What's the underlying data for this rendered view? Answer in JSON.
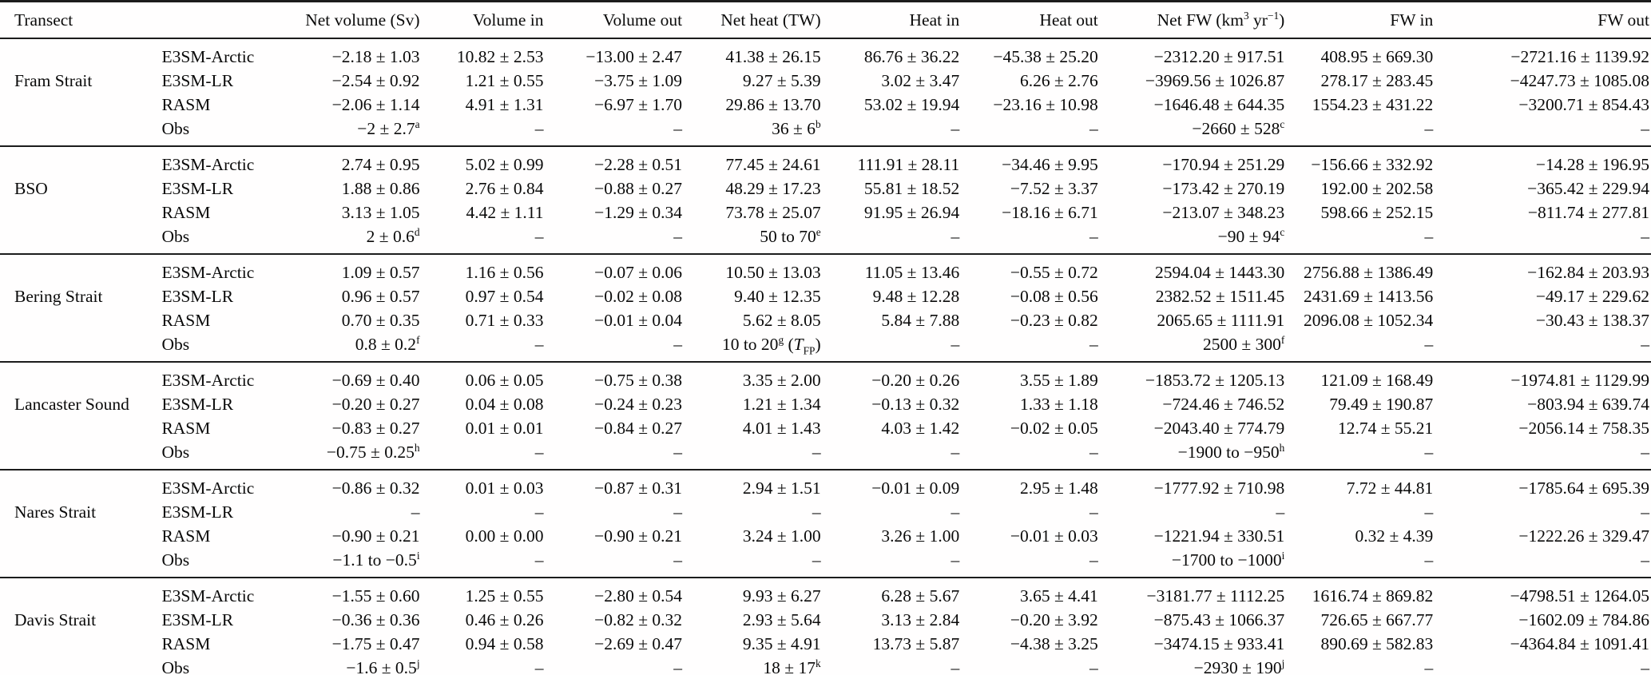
{
  "table": {
    "headers": [
      "Transect",
      "",
      "Net volume (Sv)",
      "Volume in",
      "Volume out",
      "Net heat (TW)",
      "Heat in",
      "Heat out",
      "Net FW (km^{3} yr^{−1})",
      "FW in",
      "FW out"
    ],
    "groups": [
      {
        "transect": "Fram Strait",
        "rows": [
          {
            "model": "E3SM-Arctic",
            "values": [
              "−2.18 ± 1.03",
              "10.82 ± 2.53",
              "−13.00 ± 2.47",
              "41.38 ± 26.15",
              "86.76 ± 36.22",
              "−45.38 ± 25.20",
              "−2312.20 ± 917.51",
              "408.95 ± 669.30",
              "−2721.16 ± 1139.92"
            ]
          },
          {
            "model": "E3SM-LR",
            "values": [
              "−2.54 ± 0.92",
              "1.21 ± 0.55",
              "−3.75 ± 1.09",
              "9.27 ± 5.39",
              "3.02 ± 3.47",
              "6.26 ± 2.76",
              "−3969.56 ± 1026.87",
              "278.17 ± 283.45",
              "−4247.73 ± 1085.08"
            ]
          },
          {
            "model": "RASM",
            "values": [
              "−2.06 ± 1.14",
              "4.91 ± 1.31",
              "−6.97 ± 1.70",
              "29.86 ± 13.70",
              "53.02 ± 19.94",
              "−23.16 ± 10.98",
              "−1646.48 ± 644.35",
              "1554.23 ± 431.22",
              "−3200.71 ± 854.43"
            ]
          },
          {
            "model": "Obs",
            "values": [
              "−2 ± 2.7^{a}",
              "–",
              "–",
              "36 ± 6^{b}",
              "–",
              "–",
              "−2660 ± 528^{c}",
              "–",
              "–"
            ]
          }
        ]
      },
      {
        "transect": "BSO",
        "rows": [
          {
            "model": "E3SM-Arctic",
            "values": [
              "2.74 ± 0.95",
              "5.02 ± 0.99",
              "−2.28 ± 0.51",
              "77.45 ± 24.61",
              "111.91 ± 28.11",
              "−34.46 ± 9.95",
              "−170.94 ± 251.29",
              "−156.66 ± 332.92",
              "−14.28 ± 196.95"
            ]
          },
          {
            "model": "E3SM-LR",
            "values": [
              "1.88 ± 0.86",
              "2.76 ± 0.84",
              "−0.88 ± 0.27",
              "48.29 ± 17.23",
              "55.81 ± 18.52",
              "−7.52 ± 3.37",
              "−173.42 ± 270.19",
              "192.00 ± 202.58",
              "−365.42 ± 229.94"
            ]
          },
          {
            "model": "RASM",
            "values": [
              "3.13 ± 1.05",
              "4.42 ± 1.11",
              "−1.29 ± 0.34",
              "73.78 ± 25.07",
              "91.95 ± 26.94",
              "−18.16 ± 6.71",
              "−213.07 ± 348.23",
              "598.66 ± 252.15",
              "−811.74 ± 277.81"
            ]
          },
          {
            "model": "Obs",
            "values": [
              "2 ± 0.6^{d}",
              "–",
              "–",
              "50 to 70^{e}",
              "–",
              "–",
              "−90 ± 94^{c}",
              "–",
              "–"
            ]
          }
        ]
      },
      {
        "transect": "Bering Strait",
        "rows": [
          {
            "model": "E3SM-Arctic",
            "values": [
              "1.09 ± 0.57",
              "1.16 ± 0.56",
              "−0.07 ± 0.06",
              "10.50 ± 13.03",
              "11.05 ± 13.46",
              "−0.55 ± 0.72",
              "2594.04 ± 1443.30",
              "2756.88 ± 1386.49",
              "−162.84 ± 203.93"
            ]
          },
          {
            "model": "E3SM-LR",
            "values": [
              "0.96 ± 0.57",
              "0.97 ± 0.54",
              "−0.02 ± 0.08",
              "9.40 ± 12.35",
              "9.48 ± 12.28",
              "−0.08 ± 0.56",
              "2382.52 ± 1511.45",
              "2431.69 ± 1413.56",
              "−49.17 ± 229.62"
            ]
          },
          {
            "model": "RASM",
            "values": [
              "0.70 ± 0.35",
              "0.71 ± 0.33",
              "−0.01 ± 0.04",
              "5.62 ± 8.05",
              "5.84 ± 7.88",
              "−0.23 ± 0.82",
              "2065.65 ± 1111.91",
              "2096.08 ± 1052.34",
              "−30.43 ± 138.37"
            ]
          },
          {
            "model": "Obs",
            "values": [
              "0.8 ± 0.2^{f}",
              "–",
              "–",
              "10 to 20^{g} (*{T}_{FP})",
              "–",
              "–",
              "2500 ± 300^{f}",
              "–",
              "–"
            ]
          }
        ]
      },
      {
        "transect": "Lancaster Sound",
        "rows": [
          {
            "model": "E3SM-Arctic",
            "values": [
              "−0.69 ± 0.40",
              "0.06 ± 0.05",
              "−0.75 ± 0.38",
              "3.35 ± 2.00",
              "−0.20 ± 0.26",
              "3.55 ± 1.89",
              "−1853.72 ± 1205.13",
              "121.09 ± 168.49",
              "−1974.81 ± 1129.99"
            ]
          },
          {
            "model": "E3SM-LR",
            "values": [
              "−0.20 ± 0.27",
              "0.04 ± 0.08",
              "−0.24 ± 0.23",
              "1.21 ± 1.34",
              "−0.13 ± 0.32",
              "1.33 ± 1.18",
              "−724.46 ± 746.52",
              "79.49 ± 190.87",
              "−803.94 ± 639.74"
            ]
          },
          {
            "model": "RASM",
            "values": [
              "−0.83 ± 0.27",
              "0.01 ± 0.01",
              "−0.84 ± 0.27",
              "4.01 ± 1.43",
              "4.03 ± 1.42",
              "−0.02 ± 0.05",
              "−2043.40 ± 774.79",
              "12.74 ± 55.21",
              "−2056.14 ± 758.35"
            ]
          },
          {
            "model": "Obs",
            "values": [
              "−0.75 ± 0.25^{h}",
              "–",
              "–",
              "–",
              "–",
              "–",
              "−1900 to −950^{h}",
              "–",
              "–"
            ]
          }
        ]
      },
      {
        "transect": "Nares Strait",
        "rows": [
          {
            "model": "E3SM-Arctic",
            "values": [
              "−0.86 ± 0.32",
              "0.01 ± 0.03",
              "−0.87 ± 0.31",
              "2.94 ± 1.51",
              "−0.01 ± 0.09",
              "2.95 ± 1.48",
              "−1777.92 ± 710.98",
              "7.72 ± 44.81",
              "−1785.64 ± 695.39"
            ]
          },
          {
            "model": "E3SM-LR",
            "values": [
              "–",
              "–",
              "–",
              "–",
              "–",
              "–",
              "–",
              "–",
              "–"
            ]
          },
          {
            "model": "RASM",
            "values": [
              "−0.90 ± 0.21",
              "0.00 ± 0.00",
              "−0.90 ± 0.21",
              "3.24 ± 1.00",
              "3.26 ± 1.00",
              "−0.01 ± 0.03",
              "−1221.94 ± 330.51",
              "0.32 ± 4.39",
              "−1222.26 ± 329.47"
            ]
          },
          {
            "model": "Obs",
            "values": [
              "−1.1 to −0.5^{i}",
              "–",
              "–",
              "–",
              "–",
              "–",
              "−1700 to −1000^{i}",
              "–",
              "–"
            ]
          }
        ]
      },
      {
        "transect": "Davis Strait",
        "rows": [
          {
            "model": "E3SM-Arctic",
            "values": [
              "−1.55 ± 0.60",
              "1.25 ± 0.55",
              "−2.80 ± 0.54",
              "9.93 ± 6.27",
              "6.28 ± 5.67",
              "3.65 ± 4.41",
              "−3181.77 ± 1112.25",
              "1616.74 ± 869.82",
              "−4798.51 ± 1264.05"
            ]
          },
          {
            "model": "E3SM-LR",
            "values": [
              "−0.36 ± 0.36",
              "0.46 ± 0.26",
              "−0.82 ± 0.32",
              "2.93 ± 5.64",
              "3.13 ± 2.84",
              "−0.20 ± 3.92",
              "−875.43 ± 1066.37",
              "726.65 ± 667.77",
              "−1602.09 ± 784.86"
            ]
          },
          {
            "model": "RASM",
            "values": [
              "−1.75 ± 0.47",
              "0.94 ± 0.58",
              "−2.69 ± 0.47",
              "9.35 ± 4.91",
              "13.73 ± 5.87",
              "−4.38 ± 3.25",
              "−3474.15 ± 933.41",
              "890.69 ± 582.83",
              "−4364.84 ± 1091.41"
            ]
          },
          {
            "model": "Obs",
            "values": [
              "−1.6 ± 0.5^{j}",
              "–",
              "–",
              "18 ± 17^{k}",
              "–",
              "–",
              "−2930 ± 190^{j}",
              "–",
              "–"
            ]
          }
        ]
      }
    ]
  }
}
